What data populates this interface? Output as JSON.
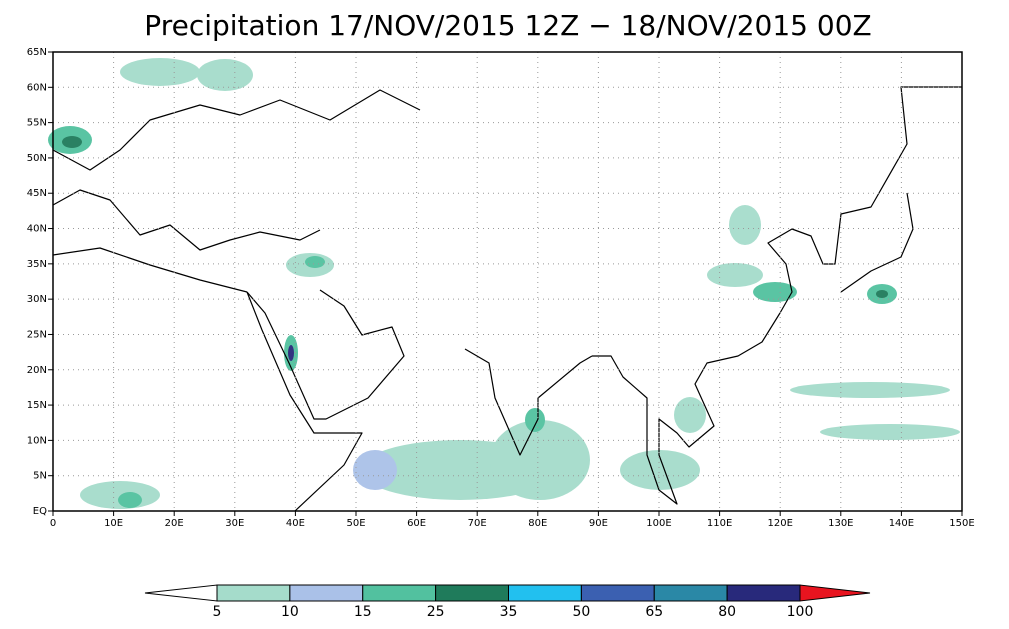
{
  "title": "Precipitation 17/NOV/2015 12Z − 18/NOV/2015 00Z",
  "map": {
    "xlim": [
      0,
      150
    ],
    "xticks": [
      0,
      {
        "value": 10,
        "label": "10E"
      },
      {
        "value": 20,
        "label": "20E"
      },
      {
        "value": 30,
        "label": "30E"
      },
      {
        "value": 40,
        "label": "40E"
      },
      {
        "value": 50,
        "label": "50E"
      },
      {
        "value": 60,
        "label": "60E"
      },
      {
        "value": 70,
        "label": "70E"
      },
      {
        "value": 80,
        "label": "80E"
      },
      {
        "value": 90,
        "label": "90E"
      },
      {
        "value": 100,
        "label": "100E"
      },
      {
        "value": 110,
        "label": "110E"
      },
      {
        "value": 120,
        "label": "120E"
      },
      {
        "value": 130,
        "label": "130E"
      },
      {
        "value": 140,
        "label": "140E"
      },
      {
        "value": 150,
        "label": "150E"
      }
    ],
    "ylim": [
      0,
      65
    ],
    "yticks": [
      {
        "value": 0,
        "label": "EQ"
      },
      {
        "value": 5,
        "label": "5N"
      },
      {
        "value": 10,
        "label": "10N"
      },
      {
        "value": 15,
        "label": "15N"
      },
      {
        "value": 20,
        "label": "20N"
      },
      {
        "value": 25,
        "label": "25N"
      },
      {
        "value": 30,
        "label": "30N"
      },
      {
        "value": 35,
        "label": "35N"
      },
      {
        "value": 40,
        "label": "40N"
      },
      {
        "value": 45,
        "label": "45N"
      },
      {
        "value": 50,
        "label": "50N"
      },
      {
        "value": 55,
        "label": "55N"
      },
      {
        "value": 60,
        "label": "60N"
      },
      {
        "value": 65,
        "label": "65N"
      }
    ],
    "grid": true
  },
  "colorbar": {
    "levels": [
      5,
      10,
      15,
      25,
      35,
      50,
      65,
      80,
      100
    ],
    "colors": [
      "#a5dccb",
      "#aac1e8",
      "#52c19f",
      "#1f7b5b",
      "#22c0ef",
      "#3b60b1",
      "#2a88a6",
      "#28297b"
    ],
    "under_color": "#ffffff",
    "over_color": "#e8141f"
  }
}
